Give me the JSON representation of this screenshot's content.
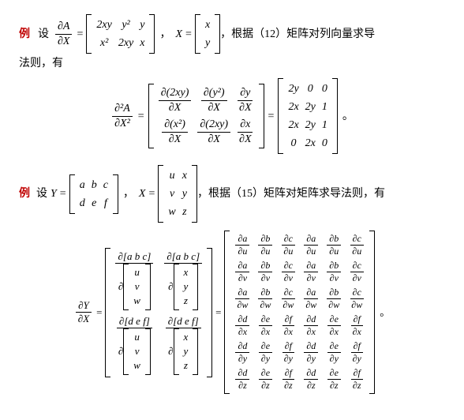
{
  "labels": {
    "example": "例",
    "set": "设"
  },
  "ex1": {
    "lhs": "∂A/∂X",
    "A": [
      [
        "2xy",
        "y²",
        "y"
      ],
      [
        "x²",
        "2xy",
        "x"
      ]
    ],
    "X": [
      [
        "x"
      ],
      [
        "y"
      ]
    ],
    "tail1": "，根据（12）矩阵对列向量求导",
    "tail2": "法则，有",
    "second_lhs_n": "∂²A",
    "second_lhs_d": "∂X²",
    "mid": [
      [
        "∂(2xy)",
        "∂(y²)",
        "∂y"
      ],
      [
        "∂(x²)",
        "∂(2xy)",
        "∂x"
      ]
    ],
    "mid_denom": "∂X",
    "rhs": [
      [
        "2y",
        "0",
        "0"
      ],
      [
        "2x",
        "2y",
        "1"
      ],
      [
        "2x",
        "2y",
        "1"
      ],
      [
        "0",
        "2x",
        "0"
      ]
    ],
    "period": "。"
  },
  "ex2": {
    "Y": [
      [
        "a",
        "b",
        "c"
      ],
      [
        "d",
        "e",
        "f"
      ]
    ],
    "X": [
      [
        "u",
        "x"
      ],
      [
        "v",
        "y"
      ],
      [
        "w",
        "z"
      ]
    ],
    "tail": "，根据（15）矩阵对矩阵求导法则，有",
    "lhs_n": "∂Y",
    "lhs_d": "∂X",
    "rowvec_top": "[a   b   c]",
    "rowvec_bot": "[d   e   f]",
    "col_uvw": [
      "u",
      "v",
      "w"
    ],
    "col_xyz": [
      "x",
      "y",
      "z"
    ],
    "big_num_rows": [
      "a",
      "b",
      "c",
      "a",
      "b",
      "c"
    ],
    "big_den": [
      "u",
      "v",
      "w",
      "x",
      "y",
      "z"
    ],
    "big_num_rows2": [
      "d",
      "e",
      "f",
      "d",
      "e",
      "f"
    ],
    "period": "。"
  }
}
